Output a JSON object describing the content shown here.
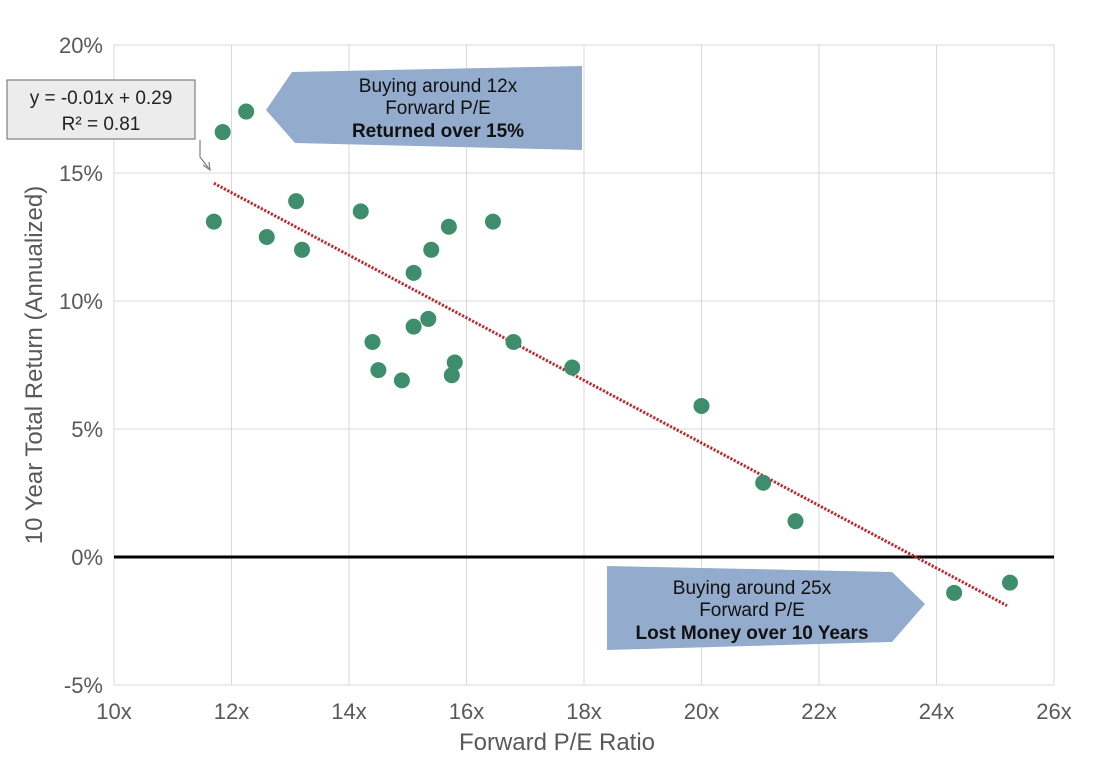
{
  "chart_data": {
    "type": "scatter",
    "title": "",
    "xlabel": "Forward P/E Ratio",
    "ylabel": "10 Year Total Return (Annualized)",
    "xlim": [
      10,
      26
    ],
    "ylim": [
      -5,
      20
    ],
    "x_ticks": [
      10,
      12,
      14,
      16,
      18,
      20,
      22,
      24,
      26
    ],
    "x_tick_labels": [
      "10x",
      "12x",
      "14x",
      "16x",
      "18x",
      "20x",
      "22x",
      "24x",
      "26x"
    ],
    "y_ticks": [
      -5,
      0,
      5,
      10,
      15,
      20
    ],
    "y_tick_labels": [
      "-5%",
      "0%",
      "5%",
      "10%",
      "15%",
      "20%"
    ],
    "grid": true,
    "colors": {
      "points": "#3e8e6e",
      "trendline": "#c0272d",
      "zero_line": "#000000",
      "grid": "#d9d9d9",
      "callout_fill": "#93abcc",
      "equation_fill": "#ececec"
    },
    "series": [
      {
        "x": [
          11.7,
          11.85,
          12.25,
          12.6,
          13.1,
          13.2,
          14.2,
          14.4,
          14.5,
          14.9,
          15.1,
          15.1,
          15.35,
          15.4,
          15.7,
          15.75,
          15.8,
          16.45,
          16.8,
          17.8,
          20.0,
          21.05,
          21.6,
          24.3,
          25.25
        ],
        "y": [
          13.1,
          16.6,
          17.4,
          12.5,
          13.9,
          12.0,
          13.5,
          8.4,
          7.3,
          6.9,
          11.1,
          9.0,
          9.3,
          12.0,
          12.9,
          7.1,
          7.6,
          13.1,
          8.4,
          7.4,
          5.9,
          2.9,
          1.4,
          -1.4,
          -1.0
        ]
      }
    ],
    "trendline": {
      "x_range": [
        11.7,
        25.2
      ],
      "y_range": [
        14.6,
        -1.9
      ],
      "equation": "y = -0.01x + 0.29",
      "r_squared": "R² = 0.81"
    },
    "annotations": [
      {
        "lines": [
          "Buying around 12x",
          "Forward P/E",
          "Returned over 15%"
        ],
        "bold_line": 2
      },
      {
        "lines": [
          "Buying around 25x",
          "Forward P/E",
          "Lost Money over 10 Years"
        ],
        "bold_line": 2
      }
    ]
  }
}
